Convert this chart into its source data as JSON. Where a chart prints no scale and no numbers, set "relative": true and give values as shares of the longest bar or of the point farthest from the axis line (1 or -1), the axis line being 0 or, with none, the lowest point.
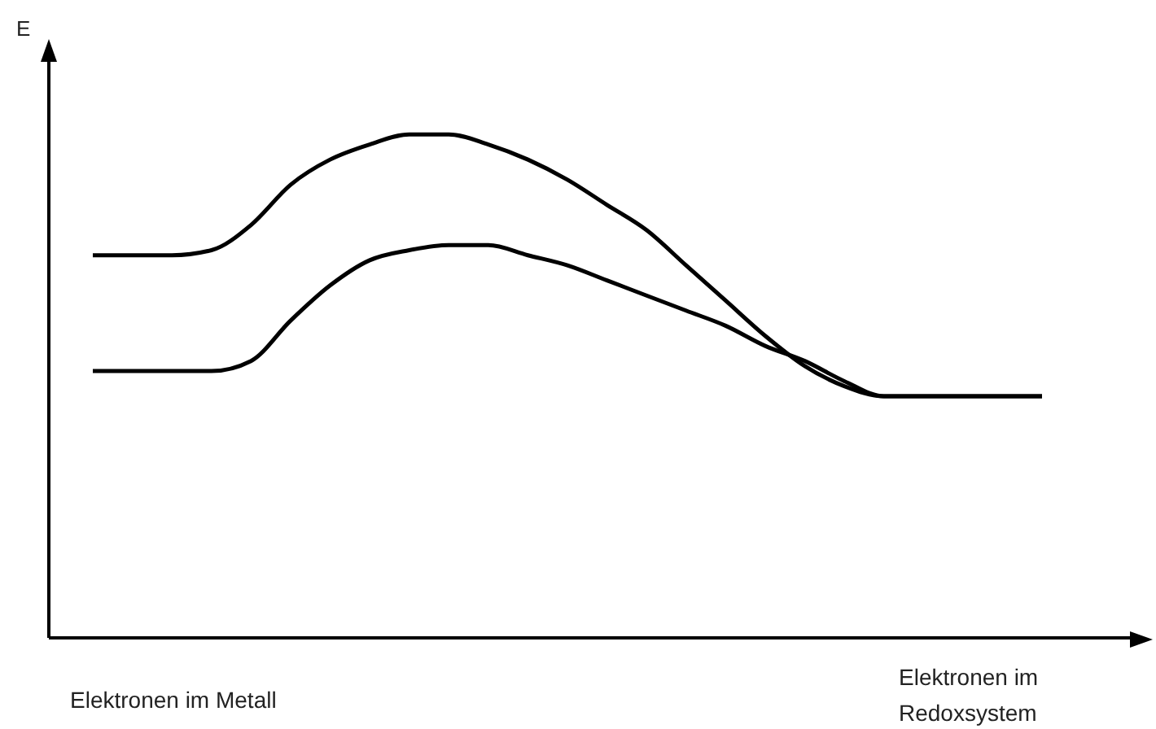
{
  "chart_data": {
    "type": "line",
    "relative": true,
    "categories": [
      null,
      null,
      null,
      null,
      null,
      null,
      null,
      null,
      null,
      null,
      null,
      null,
      null,
      null,
      null,
      null,
      null,
      null,
      null,
      null,
      null,
      null,
      null,
      null,
      null
    ],
    "series": [
      {
        "color": "#000000",
        "values": [
          0.76,
          0.76,
          0.76,
          0.77,
          0.82,
          0.9,
          0.95,
          0.98,
          1.0,
          1.0,
          0.98,
          0.95,
          0.91,
          0.86,
          0.81,
          0.74,
          0.67,
          0.6,
          0.54,
          0.5,
          0.48,
          0.48,
          0.48,
          0.48,
          0.48
        ]
      },
      {
        "color": "#000000",
        "values": [
          0.53,
          0.53,
          0.53,
          0.53,
          0.55,
          0.63,
          0.7,
          0.75,
          0.77,
          0.78,
          0.78,
          0.76,
          0.74,
          0.71,
          0.68,
          0.65,
          0.62,
          0.58,
          0.55,
          0.51,
          0.48,
          0.48,
          0.48,
          0.48,
          0.48
        ]
      }
    ],
    "annotations": [
      "E",
      "Elektronen im Metall",
      "Elektronen im Redoxsystem"
    ],
    "legend": false,
    "grid": false,
    "marker": "none",
    "line_style": "solid"
  }
}
